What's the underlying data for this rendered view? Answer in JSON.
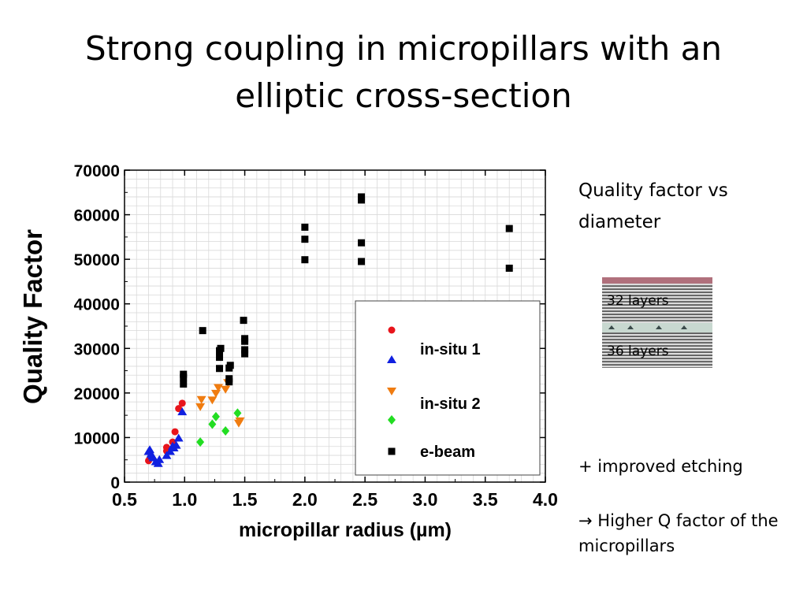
{
  "slide": {
    "title": "Strong coupling in micropillars with an elliptic cross-section"
  },
  "side_notes": {
    "heading": "Quality factor vs diameter",
    "improvement": "+ improved etching",
    "conclusion_arrow": "→",
    "conclusion": "Higher Q factor of the micropillars"
  },
  "inset": {
    "top_label": "32 layers",
    "bottom_label": "36 layers"
  },
  "chart_data": {
    "type": "scatter",
    "title": "",
    "xlabel": "micropillar radius (µm)",
    "ylabel": "Quality Factor",
    "xlim": [
      0.5,
      4.0
    ],
    "ylim": [
      0,
      70000
    ],
    "xticks": [
      "0.5",
      "1.0",
      "1.5",
      "2.0",
      "2.5",
      "3.0",
      "3.5",
      "4.0"
    ],
    "yticks": [
      "0",
      "10000",
      "20000",
      "30000",
      "40000",
      "50000",
      "60000",
      "70000"
    ],
    "grid": true,
    "legend_position": "bottom-right",
    "series": [
      {
        "name": "in-situ 1",
        "marker": "circle",
        "color": "#e8141b",
        "points": [
          [
            0.7,
            4800
          ],
          [
            0.72,
            5500
          ],
          [
            0.85,
            7000
          ],
          [
            0.85,
            7800
          ],
          [
            0.9,
            9000
          ],
          [
            0.92,
            11300
          ],
          [
            0.95,
            16500
          ],
          [
            0.98,
            17700
          ]
        ]
      },
      {
        "name": "in-situ 1",
        "marker": "triangle-up",
        "color": "#1020e0",
        "points": [
          [
            0.7,
            6800
          ],
          [
            0.71,
            7200
          ],
          [
            0.72,
            6200
          ],
          [
            0.73,
            5800
          ],
          [
            0.74,
            5400
          ],
          [
            0.76,
            4500
          ],
          [
            0.78,
            4100
          ],
          [
            0.79,
            5000
          ],
          [
            0.85,
            5900
          ],
          [
            0.88,
            6800
          ],
          [
            0.9,
            8000
          ],
          [
            0.91,
            7600
          ],
          [
            0.93,
            8200
          ],
          [
            0.95,
            9800
          ],
          [
            0.98,
            15700
          ]
        ]
      },
      {
        "name": "in-situ 2",
        "marker": "triangle-down",
        "color": "#f07c10",
        "points": [
          [
            1.13,
            17000
          ],
          [
            1.14,
            18600
          ],
          [
            1.23,
            18500
          ],
          [
            1.26,
            20000
          ],
          [
            1.28,
            21300
          ],
          [
            1.34,
            20900
          ],
          [
            1.36,
            22400
          ],
          [
            1.45,
            13300
          ],
          [
            1.46,
            13800
          ]
        ]
      },
      {
        "name": "in-situ 2",
        "marker": "diamond",
        "color": "#22dd22",
        "points": [
          [
            1.13,
            9000
          ],
          [
            1.23,
            13000
          ],
          [
            1.26,
            14700
          ],
          [
            1.34,
            11500
          ],
          [
            1.44,
            15500
          ]
        ]
      },
      {
        "name": "e-beam",
        "marker": "square",
        "color": "#000000",
        "points": [
          [
            0.99,
            22000
          ],
          [
            0.99,
            23500
          ],
          [
            0.99,
            24200
          ],
          [
            1.15,
            34000
          ],
          [
            1.29,
            25500
          ],
          [
            1.29,
            28000
          ],
          [
            1.29,
            29500
          ],
          [
            1.3,
            30000
          ],
          [
            1.37,
            22500
          ],
          [
            1.37,
            23200
          ],
          [
            1.37,
            25600
          ],
          [
            1.38,
            26200
          ],
          [
            1.49,
            36300
          ],
          [
            1.5,
            28800
          ],
          [
            1.5,
            29700
          ],
          [
            1.5,
            31600
          ],
          [
            1.5,
            32200
          ],
          [
            2.0,
            49900
          ],
          [
            2.0,
            54500
          ],
          [
            2.0,
            57200
          ],
          [
            2.47,
            49500
          ],
          [
            2.47,
            53700
          ],
          [
            2.47,
            63300
          ],
          [
            2.47,
            64000
          ],
          [
            3.7,
            48000
          ],
          [
            3.7,
            56900
          ]
        ]
      }
    ],
    "legend": [
      {
        "label": "in-situ 1",
        "markers": [
          "circle",
          "triangle-up"
        ]
      },
      {
        "label": "in-situ 2",
        "markers": [
          "triangle-down",
          "diamond"
        ]
      },
      {
        "label": "e-beam",
        "markers": [
          "square"
        ]
      }
    ]
  }
}
